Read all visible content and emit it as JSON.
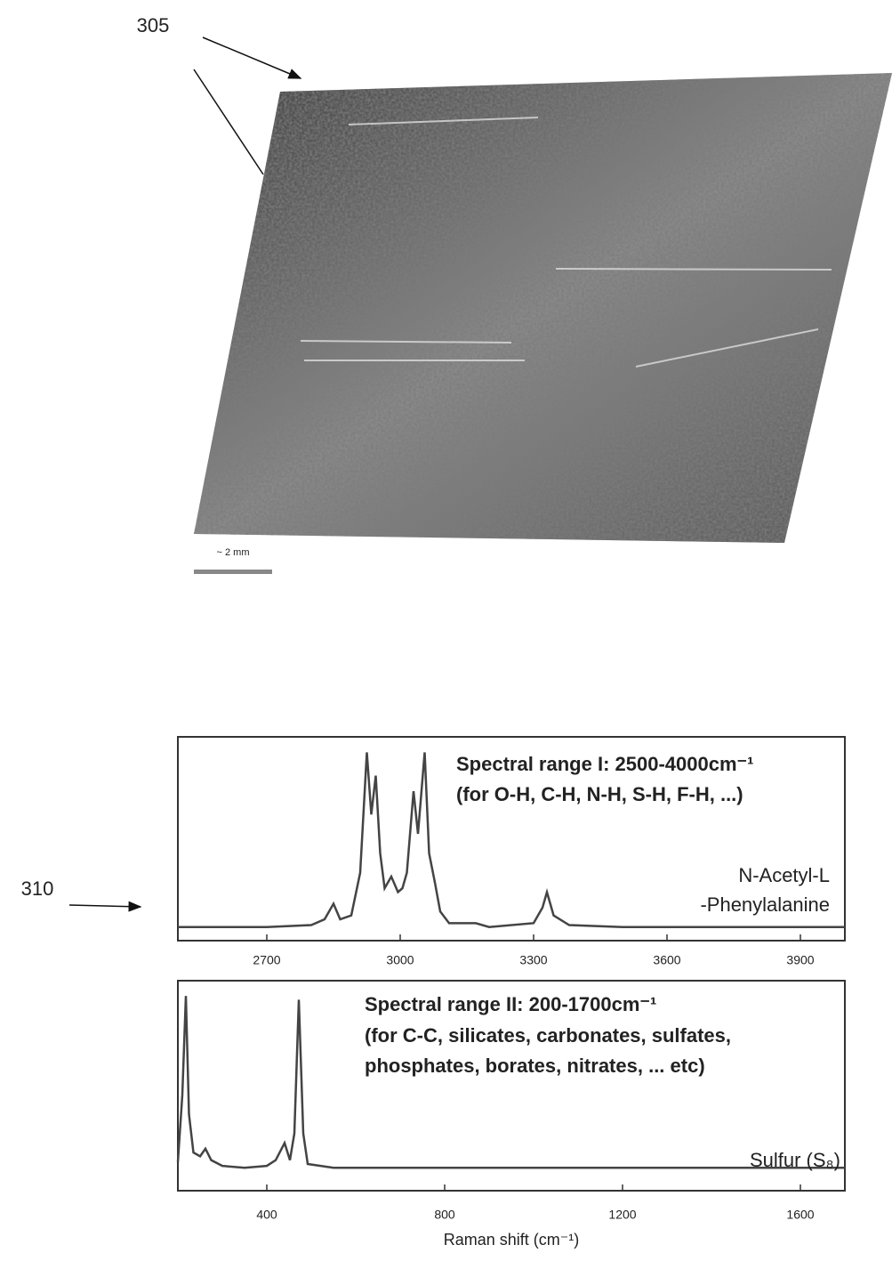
{
  "figure_labels": {
    "image": "305",
    "spectra": "310"
  },
  "scale_bar": "~ 2 mm",
  "chart_data": [
    {
      "type": "line",
      "annotations": [
        "Spectral range I: 2500-4000cm⁻¹",
        "(for O-H, C-H, N-H, S-H, F-H, ...)",
        "N-Acetyl-L",
        "-Phenylalanine"
      ],
      "x": [
        2500,
        2600,
        2700,
        2800,
        2830,
        2850,
        2865,
        2890,
        2910,
        2925,
        2935,
        2945,
        2955,
        2965,
        2980,
        2995,
        3005,
        3015,
        3030,
        3040,
        3055,
        3065,
        3078,
        3090,
        3110,
        3170,
        3200,
        3300,
        3320,
        3330,
        3345,
        3380,
        3500,
        3700,
        3900,
        4000
      ],
      "series": [
        {
          "color": "#444444",
          "values": [
            2,
            2,
            2,
            3,
            6,
            14,
            6,
            8,
            30,
            92,
            60,
            80,
            40,
            22,
            28,
            20,
            22,
            30,
            72,
            50,
            92,
            40,
            25,
            10,
            4,
            4,
            2,
            4,
            12,
            20,
            8,
            3,
            2,
            2,
            2,
            2
          ]
        }
      ],
      "xlim": [
        2500,
        4000
      ],
      "xticks": [
        2700,
        3000,
        3300,
        3600,
        3900
      ],
      "ylim": [
        -5,
        100
      ]
    },
    {
      "type": "line",
      "annotations": [
        "Spectral range II: 200-1700cm⁻¹",
        "(for C-C, silicates, carbonates, sulfates,",
        "phosphates, borates, nitrates, ... etc)",
        "Sulfur (S₈)"
      ],
      "x_label": "Raman shift (cm⁻¹)",
      "x": [
        200,
        210,
        218,
        225,
        235,
        250,
        262,
        275,
        300,
        350,
        400,
        420,
        440,
        452,
        462,
        472,
        482,
        492,
        550,
        800,
        1000,
        1200,
        1400,
        1700
      ],
      "series": [
        {
          "color": "#444444",
          "values": [
            5,
            40,
            92,
            30,
            10,
            8,
            12,
            6,
            3,
            2,
            3,
            6,
            15,
            6,
            20,
            90,
            20,
            4,
            2,
            2,
            2,
            2,
            2,
            2
          ]
        }
      ],
      "xlim": [
        200,
        1700
      ],
      "xticks": [
        400,
        800,
        1200,
        1600
      ],
      "ylim": [
        -10,
        100
      ]
    }
  ]
}
